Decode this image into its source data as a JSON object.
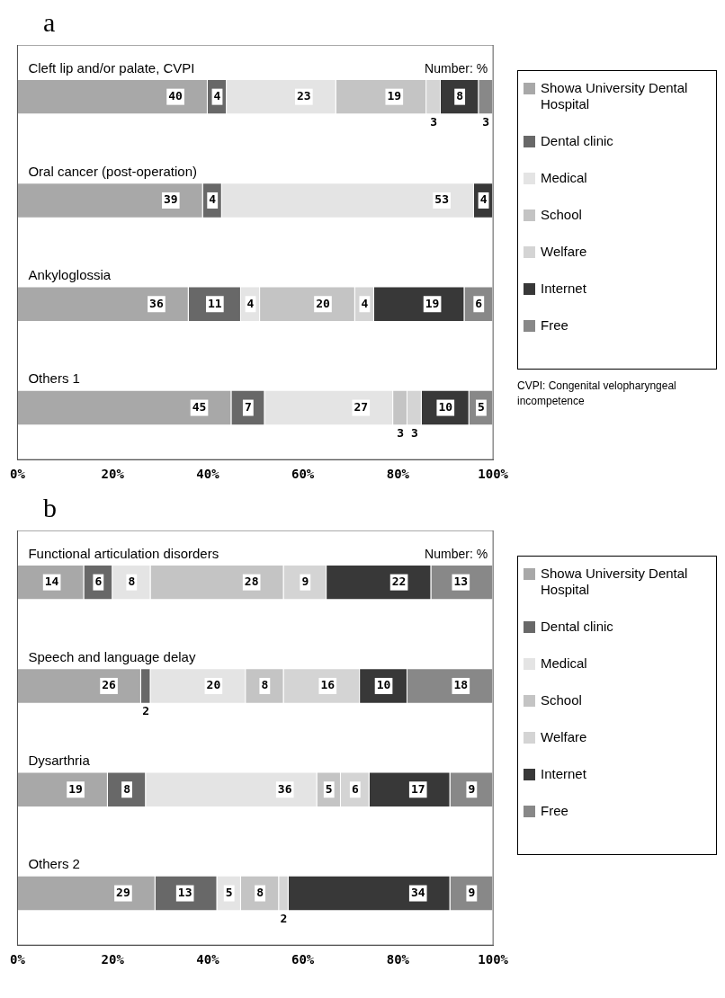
{
  "chart_data": [
    {
      "type": "bar",
      "title": "a",
      "orientation": "horizontal",
      "stacked": true,
      "legend": "right",
      "grid": false,
      "categories": [
        "Cleft lip and/or palate, CVPI",
        "Oral cancer (post-operation)",
        "Ankyloglossia",
        "Others 1"
      ],
      "xlim": [
        0,
        100
      ],
      "xticks": [
        {
          "value": 0,
          "label": "0%"
        },
        {
          "value": 20,
          "label": "20%"
        },
        {
          "value": 40,
          "label": "40%"
        },
        {
          "value": 60,
          "label": "60%"
        },
        {
          "value": 80,
          "label": "80%"
        },
        {
          "value": 100,
          "label": "100%"
        }
      ],
      "annotations": [
        "Number: %",
        "CVPI: Congenital velopharyngeal incompetence"
      ],
      "series": [
        {
          "name": "Showa University Dental Hospital",
          "color": "#a8a8a8",
          "values": [
            40,
            39,
            36,
            45
          ],
          "value_labels": [
            "40",
            "39",
            "36",
            "45"
          ]
        },
        {
          "name": "Dental clinic",
          "color": "#686868",
          "values": [
            4,
            4,
            11,
            7
          ],
          "value_labels": [
            "4",
            "4",
            "11",
            "7"
          ]
        },
        {
          "name": "Medical",
          "color": "#e4e4e4",
          "values": [
            23,
            53,
            4,
            27
          ],
          "value_labels": [
            "23",
            "53",
            "4",
            "27"
          ]
        },
        {
          "name": "School",
          "color": "#c4c4c4",
          "values": [
            19,
            0,
            20,
            3
          ],
          "value_labels": [
            "19",
            null,
            "20",
            "3"
          ]
        },
        {
          "name": "Welfare",
          "color": "#d4d4d4",
          "values": [
            3,
            0,
            4,
            3
          ],
          "value_labels": [
            "3",
            null,
            "4",
            "3"
          ]
        },
        {
          "name": "Internet",
          "color": "#383838",
          "values": [
            8,
            4,
            19,
            10
          ],
          "value_labels": [
            "8",
            "4",
            "19",
            "10"
          ]
        },
        {
          "name": "Free",
          "color": "#888888",
          "values": [
            3,
            0,
            6,
            5
          ],
          "value_labels": [
            "3",
            null,
            "6",
            "5"
          ]
        }
      ]
    },
    {
      "type": "bar",
      "title": "b",
      "orientation": "horizontal",
      "stacked": true,
      "legend": "right",
      "grid": false,
      "categories": [
        "Functional articulation disorders",
        "Speech and language delay",
        "Dysarthria",
        "Others 2"
      ],
      "xlim": [
        0,
        100
      ],
      "xticks": [
        {
          "value": 0,
          "label": "0%"
        },
        {
          "value": 20,
          "label": "20%"
        },
        {
          "value": 40,
          "label": "40%"
        },
        {
          "value": 60,
          "label": "60%"
        },
        {
          "value": 80,
          "label": "80%"
        },
        {
          "value": 100,
          "label": "100%"
        }
      ],
      "annotations": [
        "Number: %"
      ],
      "series": [
        {
          "name": "Showa University Dental Hospital",
          "color": "#a8a8a8",
          "values": [
            14,
            26,
            19,
            29
          ],
          "value_labels": [
            "14",
            "26",
            "19",
            "29"
          ]
        },
        {
          "name": "Dental clinic",
          "color": "#686868",
          "values": [
            6,
            2,
            8,
            13
          ],
          "value_labels": [
            "6",
            "2",
            "8",
            "13"
          ]
        },
        {
          "name": "Medical",
          "color": "#e4e4e4",
          "values": [
            8,
            20,
            36,
            5
          ],
          "value_labels": [
            "8",
            "20",
            "36",
            "5"
          ]
        },
        {
          "name": "School",
          "color": "#c4c4c4",
          "values": [
            28,
            8,
            5,
            8
          ],
          "value_labels": [
            "28",
            "8",
            "5",
            "8"
          ]
        },
        {
          "name": "Welfare",
          "color": "#d4d4d4",
          "values": [
            9,
            16,
            6,
            2
          ],
          "value_labels": [
            "9",
            "16",
            "6",
            "2"
          ]
        },
        {
          "name": "Internet",
          "color": "#383838",
          "values": [
            22,
            10,
            17,
            34
          ],
          "value_labels": [
            "22",
            "10",
            "17",
            "34"
          ]
        },
        {
          "name": "Free",
          "color": "#888888",
          "values": [
            13,
            18,
            9,
            9
          ],
          "value_labels": [
            "13",
            "18",
            "9",
            "9"
          ]
        }
      ]
    }
  ]
}
